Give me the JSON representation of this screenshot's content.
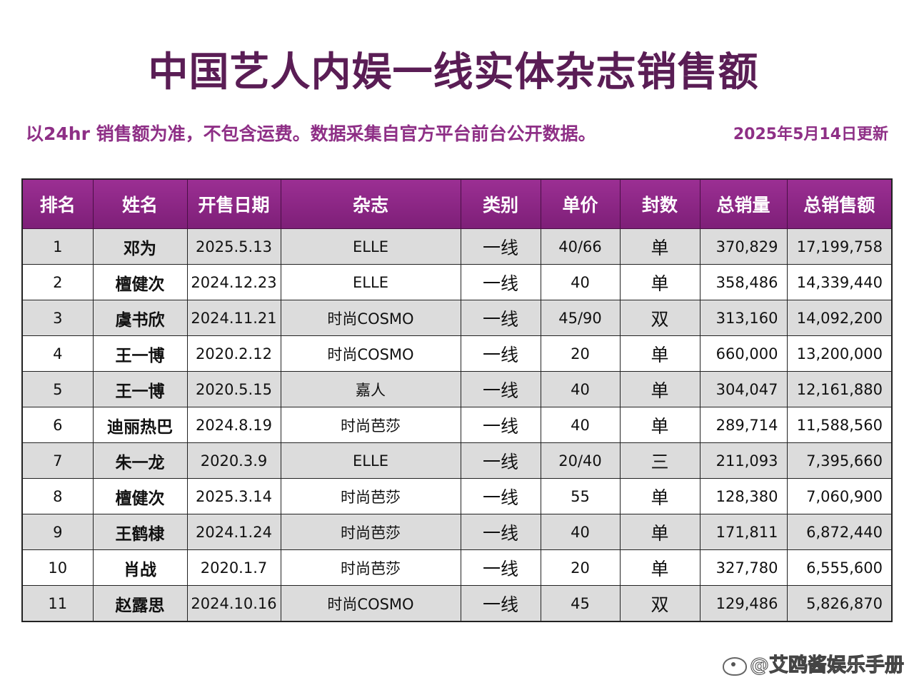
{
  "title": "中国艺人内娱一线实体杂志销售额",
  "subtitle": "以24hr 销售额为准，不包含运费。数据采集自官方平台前台公开数据。",
  "update_note": "2025年5月14日更新",
  "watermark": "@艾鸥酱娱乐手册",
  "colors": {
    "header_bg": "#8a2584",
    "title": "#5a1d55",
    "subtitle": "#8e2f86",
    "row_shade": "#dcdcdc"
  },
  "table": {
    "headers": [
      "排名",
      "姓名",
      "开售日期",
      "杂志",
      "类别",
      "单价",
      "封数",
      "总销量",
      "总销售额"
    ],
    "rows": [
      {
        "rank": "1",
        "name": "邓为",
        "date": "2025.5.13",
        "magazine": "ELLE",
        "type": "一线",
        "price": "40/66",
        "covers": "单",
        "total": "370,829",
        "sales": "17,199,758"
      },
      {
        "rank": "2",
        "name": "檀健次",
        "date": "2024.12.23",
        "magazine": "ELLE",
        "type": "一线",
        "price": "40",
        "covers": "单",
        "total": "358,486",
        "sales": "14,339,440"
      },
      {
        "rank": "3",
        "name": "虞书欣",
        "date": "2024.11.21",
        "magazine": "时尚COSMO",
        "type": "一线",
        "price": "45/90",
        "covers": "双",
        "total": "313,160",
        "sales": "14,092,200"
      },
      {
        "rank": "4",
        "name": "王一博",
        "date": "2020.2.12",
        "magazine": "时尚COSMO",
        "type": "一线",
        "price": "20",
        "covers": "单",
        "total": "660,000",
        "sales": "13,200,000"
      },
      {
        "rank": "5",
        "name": "王一博",
        "date": "2020.5.15",
        "magazine": "嘉人",
        "type": "一线",
        "price": "40",
        "covers": "单",
        "total": "304,047",
        "sales": "12,161,880"
      },
      {
        "rank": "6",
        "name": "迪丽热巴",
        "date": "2024.8.19",
        "magazine": "时尚芭莎",
        "type": "一线",
        "price": "40",
        "covers": "单",
        "total": "289,714",
        "sales": "11,588,560"
      },
      {
        "rank": "7",
        "name": "朱一龙",
        "date": "2020.3.9",
        "magazine": "ELLE",
        "type": "一线",
        "price": "20/40",
        "covers": "三",
        "total": "211,093",
        "sales": "7,395,660"
      },
      {
        "rank": "8",
        "name": "檀健次",
        "date": "2025.3.14",
        "magazine": "时尚芭莎",
        "type": "一线",
        "price": "55",
        "covers": "单",
        "total": "128,380",
        "sales": "7,060,900"
      },
      {
        "rank": "9",
        "name": "王鹤棣",
        "date": "2024.1.24",
        "magazine": "时尚芭莎",
        "type": "一线",
        "price": "40",
        "covers": "单",
        "total": "171,811",
        "sales": "6,872,440"
      },
      {
        "rank": "10",
        "name": "肖战",
        "date": "2020.1.7",
        "magazine": "时尚芭莎",
        "type": "一线",
        "price": "20",
        "covers": "单",
        "total": "327,780",
        "sales": "6,555,600"
      },
      {
        "rank": "11",
        "name": "赵露思",
        "date": "2024.10.16",
        "magazine": "时尚COSMO",
        "type": "一线",
        "price": "45",
        "covers": "双",
        "total": "129,486",
        "sales": "5,826,870"
      }
    ]
  }
}
